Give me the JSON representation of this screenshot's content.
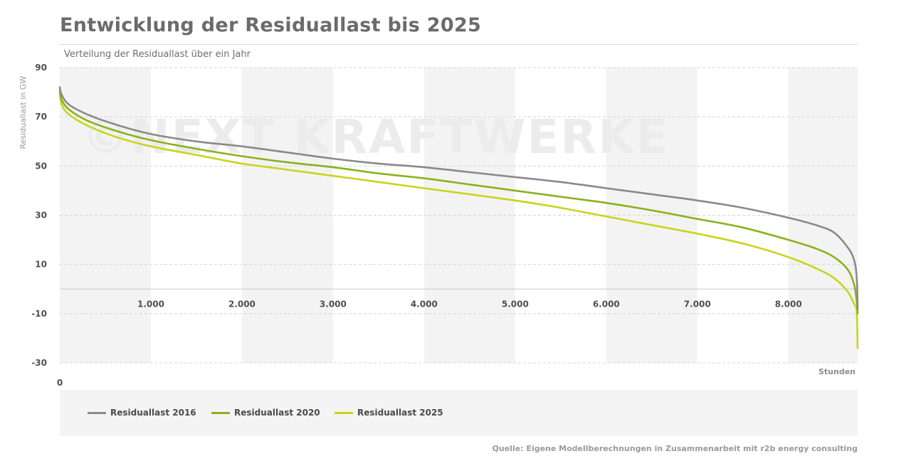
{
  "header": {
    "title": "Entwicklung der Residuallast bis 2025",
    "subtitle": "Verteilung der Residuallast über ein Jahr"
  },
  "watermark": "©NEXT KRAFTWERKE",
  "source": "Quelle: Eigene Modellberechnungen in Zusammenarbeit mit r2b energy consulting",
  "chart_data": {
    "type": "line",
    "title": "Entwicklung der Residuallast bis 2025",
    "subtitle": "Verteilung der Residuallast über ein Jahr",
    "ylabel": "Residuallast in GW",
    "xlabel": "Stunden",
    "xlim": [
      0,
      8760
    ],
    "ylim": [
      -30,
      90
    ],
    "x_zero_label": "0",
    "yticks": [
      {
        "value": 90,
        "label": "90"
      },
      {
        "value": 70,
        "label": "70"
      },
      {
        "value": 50,
        "label": "50"
      },
      {
        "value": 30,
        "label": "30"
      },
      {
        "value": 10,
        "label": "10"
      },
      {
        "value": -10,
        "label": "-10"
      },
      {
        "value": -30,
        "label": "-30"
      }
    ],
    "xticks": [
      {
        "value": 1000,
        "label": "1.000"
      },
      {
        "value": 2000,
        "label": "2.000"
      },
      {
        "value": 3000,
        "label": "3.000"
      },
      {
        "value": 4000,
        "label": "4.000"
      },
      {
        "value": 5000,
        "label": "5.000"
      },
      {
        "value": 6000,
        "label": "6.000"
      },
      {
        "value": 7000,
        "label": "7.000"
      },
      {
        "value": 8000,
        "label": "8.000"
      }
    ],
    "grid": true,
    "legend": "bottom",
    "series": [
      {
        "name": "Residuallast 2016",
        "color": "#8a8a8a",
        "x": [
          0,
          20,
          100,
          300,
          600,
          1000,
          1500,
          2000,
          2500,
          3000,
          3500,
          4000,
          4500,
          5000,
          5500,
          6000,
          6500,
          7000,
          7500,
          8000,
          8300,
          8500,
          8650,
          8720,
          8750,
          8760
        ],
        "y": [
          82,
          79,
          75,
          71,
          67,
          63,
          60,
          58,
          55.5,
          53,
          51,
          49.5,
          47.5,
          45.5,
          43.5,
          41,
          38.5,
          36,
          33,
          29,
          26,
          23,
          17,
          12,
          5,
          -8
        ]
      },
      {
        "name": "Residuallast 2020",
        "color": "#8ab21c",
        "x": [
          0,
          20,
          100,
          300,
          600,
          1000,
          1500,
          2000,
          2500,
          3000,
          3500,
          4000,
          4500,
          5000,
          5500,
          6000,
          6500,
          7000,
          7500,
          8000,
          8300,
          8500,
          8650,
          8720,
          8750,
          8760
        ],
        "y": [
          81,
          77,
          73,
          68.5,
          64.5,
          60.5,
          57,
          54,
          51.5,
          49.5,
          47,
          45,
          42.5,
          40,
          37.5,
          35,
          32,
          28.5,
          25,
          20,
          16.5,
          13,
          8,
          2,
          -5,
          -10
        ]
      },
      {
        "name": "Residuallast 2025",
        "color": "#c8d51b",
        "x": [
          0,
          20,
          100,
          300,
          600,
          1000,
          1500,
          2000,
          2500,
          3000,
          3500,
          4000,
          4500,
          5000,
          5500,
          6000,
          6500,
          7000,
          7500,
          8000,
          8300,
          8500,
          8650,
          8720,
          8750,
          8760
        ],
        "y": [
          80,
          75,
          71,
          66.5,
          62,
          58,
          54.5,
          51,
          48.5,
          46,
          43.5,
          41,
          38.5,
          36,
          33,
          29.5,
          26,
          22.5,
          18.5,
          13,
          8.5,
          4.5,
          -1,
          -6,
          -9,
          -24
        ]
      }
    ]
  }
}
